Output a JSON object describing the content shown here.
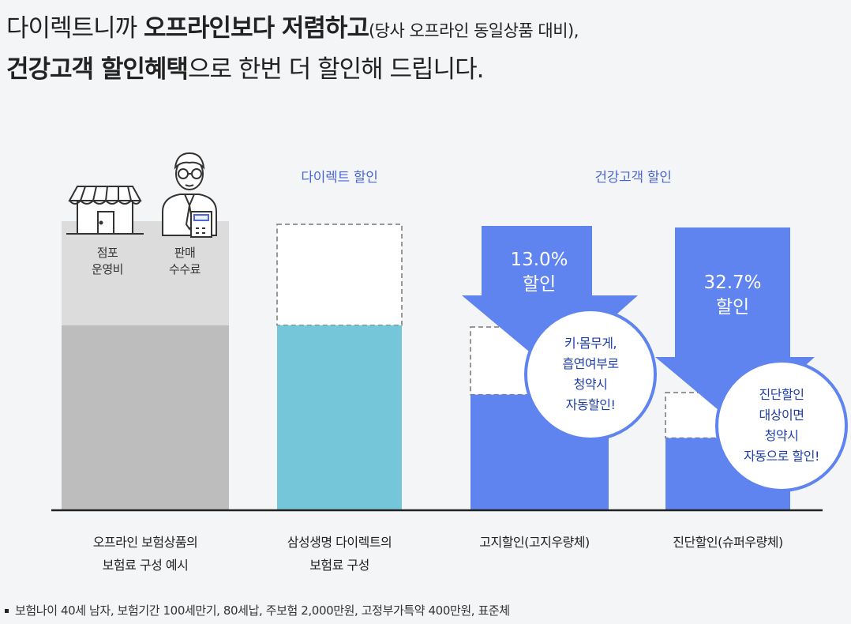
{
  "headline": {
    "line1_a": "다이렉트니까 ",
    "line1_b": "오프라인보다 저렴하고",
    "line1_c": "(당사 오프라인 동일상품 대비),",
    "line2_a": "건강고객 할인혜택",
    "line2_b": "으로 한번 더 할인해 드립니다."
  },
  "group_labels": {
    "direct": "다이렉트 할인",
    "healthy": "건강고객 할인"
  },
  "cost_labels": {
    "store": [
      "점포",
      "운영비"
    ],
    "commission": [
      "판매",
      "수수료"
    ]
  },
  "icons": {
    "store": "store-icon",
    "salesperson": "salesperson-icon"
  },
  "chart_data": {
    "type": "bar",
    "categories": [
      "오프라인 보험상품의 보험료 구성 예시",
      "삼성생명 다이렉트의 보험료 구성",
      "고지할인(고지우량체)",
      "진단할인(슈퍼우량체)"
    ],
    "category_lines": [
      [
        "오프라인 보험상품의",
        "보험료 구성 예시"
      ],
      [
        "삼성생명 다이렉트의",
        "보험료 구성"
      ],
      [
        "고지할인(고지우량체)"
      ],
      [
        "진단할인(슈퍼우량체)"
      ]
    ],
    "discounts": [
      {
        "value": "13.0%",
        "label": "할인",
        "bubble": [
          "키·몸무게,",
          "흡연여부로",
          "청약시",
          "자동할인!"
        ]
      },
      {
        "value": "32.7%",
        "label": "할인",
        "bubble": [
          "진단할인",
          "대상이면",
          "청약시",
          "자동으로 할인!"
        ]
      }
    ],
    "colors": {
      "offline_base": "#bdbdbd",
      "offline_overhead": "#dcdcdc",
      "direct": "#74c6d8",
      "discount": "#5f84f0",
      "group_label": "#4a67d4"
    },
    "relative_heights": {
      "offline_total": 100,
      "offline_base": 64,
      "direct": 64,
      "healthy_notice": 40,
      "healthy_super": 25
    }
  },
  "footnote": "보험나이 40세 남자, 보험기간 100세만기, 80세납, 주보험 2,000만원, 고정부가특약 400만원, 표준체"
}
